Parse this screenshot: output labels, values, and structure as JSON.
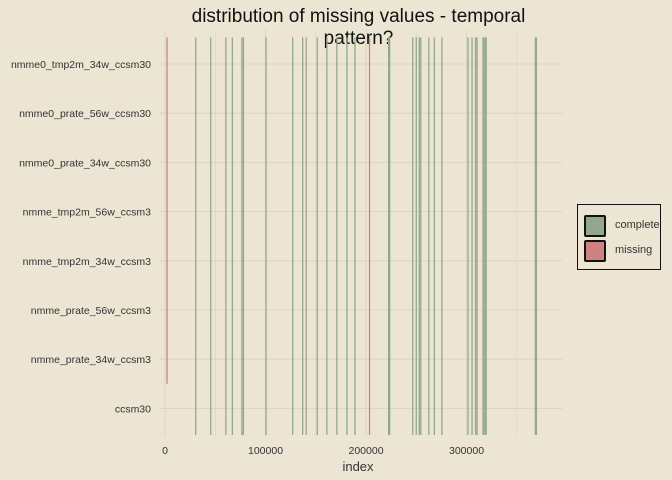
{
  "chart_data": {
    "type": "heatmap",
    "title": "distribution of missing values - temporal pattern?",
    "xlabel": "index",
    "ylabel": "",
    "xlim": [
      -5000,
      395000
    ],
    "x_ticks": [
      0,
      100000,
      200000,
      300000
    ],
    "x_tick_labels": [
      "0",
      "100000",
      "200000",
      "300000"
    ],
    "categories": [
      "nmme0_tmp2m_34w_ccsm30",
      "nmme0_prate_56w_ccsm30",
      "nmme0_prate_34w_ccsm30",
      "nmme_tmp2m_56w_ccsm3",
      "nmme_tmp2m_34w_ccsm3",
      "nmme_prate_56w_ccsm3",
      "nmme_prate_34w_ccsm3",
      "ccsm30"
    ],
    "legend": {
      "position": "right",
      "entries": [
        {
          "key": "complete",
          "label": "complete",
          "color": "#93a78d"
        },
        {
          "key": "missing",
          "label": "missing",
          "color": "#ce8282"
        }
      ]
    },
    "grid": true,
    "colors": {
      "complete": "#93a78d",
      "missing": "#ce8282",
      "grid": "#d7d0bf",
      "background": "#ede5d4"
    },
    "series": [
      {
        "name": "complete",
        "values": [
          {
            "x": 30500,
            "rows": "all"
          },
          {
            "x": 45500,
            "rows": "all"
          },
          {
            "x": 60500,
            "rows": "all"
          },
          {
            "x": 67000,
            "rows": "all"
          },
          {
            "x": 76500,
            "rows": "all"
          },
          {
            "x": 78000,
            "rows": "all"
          },
          {
            "x": 100500,
            "rows": "all"
          },
          {
            "x": 127000,
            "rows": "all"
          },
          {
            "x": 137000,
            "rows": "all"
          },
          {
            "x": 140500,
            "rows": "all"
          },
          {
            "x": 151500,
            "rows": "all"
          },
          {
            "x": 161000,
            "rows": "all"
          },
          {
            "x": 171000,
            "rows": "all"
          },
          {
            "x": 181000,
            "rows": "all"
          },
          {
            "x": 189000,
            "rows": "all"
          },
          {
            "x": 222500,
            "rows": "all"
          },
          {
            "x": 223500,
            "rows": "all"
          },
          {
            "x": 246500,
            "rows": "all"
          },
          {
            "x": 250000,
            "rows": "all"
          },
          {
            "x": 253000,
            "rows": "all"
          },
          {
            "x": 254500,
            "rows": "all"
          },
          {
            "x": 262500,
            "rows": "all"
          },
          {
            "x": 268000,
            "rows": "all"
          },
          {
            "x": 275500,
            "rows": "all"
          },
          {
            "x": 301500,
            "rows": "all"
          },
          {
            "x": 305500,
            "rows": "all"
          },
          {
            "x": 309000,
            "rows": "all"
          },
          {
            "x": 310500,
            "rows": "all"
          },
          {
            "x": 316500,
            "rows": "all"
          },
          {
            "x": 317000,
            "rows": "all"
          },
          {
            "x": 318500,
            "rows": "all"
          },
          {
            "x": 319500,
            "rows": "all"
          },
          {
            "x": 368500,
            "rows": "all"
          },
          {
            "x": 369500,
            "rows": "all"
          }
        ]
      },
      {
        "name": "missing",
        "values": [
          {
            "x": 2000,
            "rows": [
              "nmme0_tmp2m_34w_ccsm30",
              "nmme0_prate_56w_ccsm30",
              "nmme0_prate_34w_ccsm30",
              "nmme_tmp2m_56w_ccsm3",
              "nmme_tmp2m_34w_ccsm3",
              "nmme_prate_56w_ccsm3",
              "nmme_prate_34w_ccsm3"
            ]
          },
          {
            "x": 203500,
            "rows": "all"
          }
        ]
      }
    ]
  }
}
